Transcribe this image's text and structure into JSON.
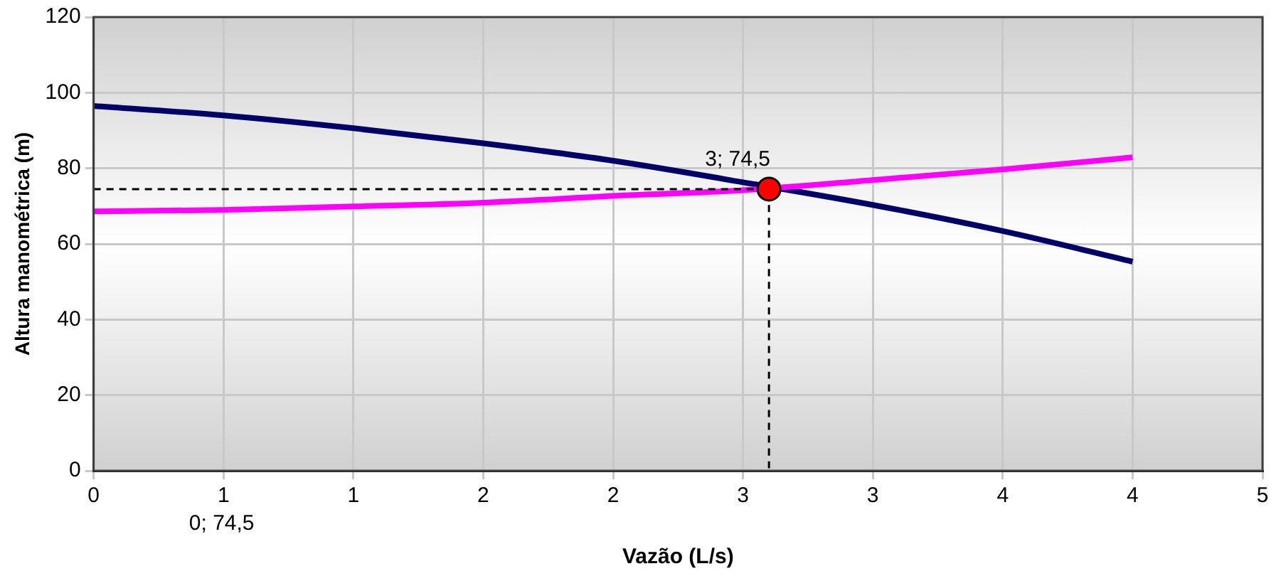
{
  "chart_data": {
    "type": "line",
    "xlabel": "Vazão (L/s)",
    "ylabel": "Altura manométrica (m)",
    "xlim": [
      0,
      4.5
    ],
    "xticks": [
      0,
      {
        "value": 0.5,
        "label": "1"
      },
      1,
      {
        "value": 1.5,
        "label": "2"
      },
      2,
      {
        "value": 2.5,
        "label": "3"
      },
      3,
      {
        "value": 3.5,
        "label": "4"
      },
      4,
      {
        "value": 4.5,
        "label": "5"
      }
    ],
    "ylim": [
      0,
      120
    ],
    "yticks": [
      0,
      20,
      40,
      60,
      80,
      100,
      120
    ],
    "grid": true,
    "legend": false,
    "marker": "none",
    "series": [
      {
        "color": "#000066",
        "x": [
          0,
          0.5,
          1,
          1.5,
          2,
          2.5,
          3,
          3.5,
          4
        ],
        "values": [
          96.5,
          94,
          90.6,
          86.6,
          82,
          76.3,
          70.3,
          63.4,
          55.3
        ]
      },
      {
        "color": "#ff00ff",
        "x": [
          0,
          0.5,
          1,
          1.5,
          2,
          2.5,
          3,
          3.5,
          4
        ],
        "values": [
          68.6,
          69,
          69.9,
          70.9,
          72.7,
          74.2,
          76.9,
          79.7,
          82.9
        ]
      },
      {
        "color": "#000000",
        "line_style": "dashed",
        "x": [
          0,
          2.6,
          2.6
        ],
        "values": [
          74.5,
          74.5,
          0
        ]
      },
      {
        "type": "scatter",
        "color": "#ff0000",
        "marker": "circle",
        "x": [
          2.6
        ],
        "values": [
          74.5
        ]
      }
    ],
    "annotations": [
      {
        "text": "3; 74,5",
        "x": 2.6,
        "y": 74.5
      },
      "0; 74,5"
    ]
  }
}
